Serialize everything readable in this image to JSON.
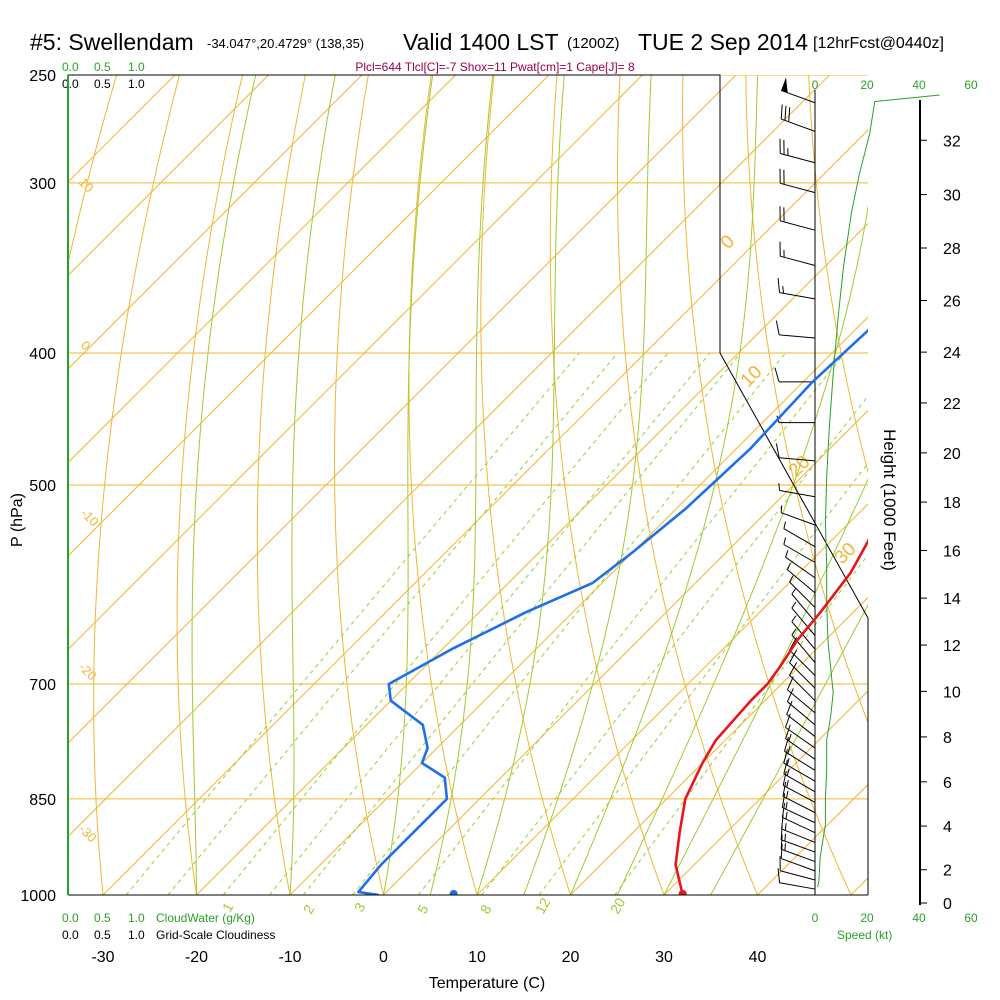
{
  "header": {
    "station": "#5: Swellendam",
    "coords": "-34.047°,20.4729° (138,35)",
    "valid": "Valid 1400 LST",
    "zulu": "(1200Z)",
    "date": "TUE 2 Sep 2014",
    "forecast": "[12hrFcst@0440z]",
    "indices": "Plcl=644 Tlcl[C]=-7 Shox=11 Pwat[cm]=1 Cape[J]= 8"
  },
  "legends": {
    "cloudwater_scale": [
      "0.0",
      "0.5",
      "1.0"
    ],
    "cloudwater_label": "CloudWater (g/Kg)",
    "cloudiness_scale": [
      "0.0",
      "0.5",
      "1.0"
    ],
    "cloudiness_label": "Grid-Scale Cloudiness",
    "speed_label": "Speed (kt)"
  },
  "colors": {
    "isobar": "#f2b632",
    "isotherm": "#f2b632",
    "dry_adiabat": "#f2b632",
    "moist_adiabat": "#9ccc33",
    "mixing_ratio": "#9ccc33",
    "temperature": "#e8141e",
    "dewpoint": "#1e6fe8",
    "speed": "#2aa02a"
  },
  "chart_data": {
    "type": "line",
    "title": "#5: Swellendam -34.047°,20.4729° (138,35) Valid 1400 LST (1200Z) TUE 2 Sep 2014 [12hrFcst@0440z]",
    "xlabel": "Temperature (C)",
    "ylabel": "P (hPa)",
    "right_ylabel": "Height (1000 Feet)",
    "x_ticks": [
      -30,
      -20,
      -10,
      0,
      10,
      20,
      30,
      40
    ],
    "xlim": [
      -34,
      46
    ],
    "y_ticks": [
      250,
      300,
      400,
      500,
      700,
      850,
      1000
    ],
    "ylim": [
      1000,
      250
    ],
    "y_scale": "log",
    "height_ticks": [
      0,
      2,
      4,
      6,
      8,
      10,
      12,
      14,
      16,
      18,
      20,
      22,
      24,
      26,
      28,
      30,
      32
    ],
    "speed_ticks": [
      0,
      20,
      40,
      60
    ],
    "dry_adiabat_labels": [
      "40",
      "30",
      "20",
      "10",
      "0",
      "-10",
      "-20",
      "-30"
    ],
    "dry_adiabat_temps": [
      40,
      30,
      20,
      10,
      0,
      -10,
      -20,
      -30
    ],
    "moist_adiabat_labels": [
      "0",
      "10",
      "20",
      "30"
    ],
    "moist_adiabat_thetaw": [
      0,
      10,
      20,
      30
    ],
    "mixing_ratio_labels": [
      "1",
      "2",
      "3",
      "5",
      "8",
      "12",
      "20"
    ],
    "mixing_ratio_values": [
      1,
      2,
      3,
      5,
      8,
      12,
      20
    ],
    "series": [
      {
        "name": "Temperature",
        "points": [
          [
            32,
            1000
          ],
          [
            28,
            950
          ],
          [
            25,
            900
          ],
          [
            22,
            850
          ],
          [
            20,
            800
          ],
          [
            19,
            770
          ],
          [
            18.5,
            720
          ],
          [
            18.5,
            700
          ],
          [
            18,
            680
          ],
          [
            17,
            650
          ],
          [
            16.5,
            620
          ],
          [
            15.5,
            580
          ],
          [
            14,
            550
          ],
          [
            12,
            520
          ],
          [
            10,
            500
          ],
          [
            7,
            450
          ],
          [
            4,
            400
          ],
          [
            1.5,
            350
          ],
          [
            -0.5,
            300
          ],
          [
            -1,
            270
          ],
          [
            -1,
            260
          ]
        ]
      },
      {
        "name": "Dewpoint",
        "points": [
          [
            -0.5,
            1000
          ],
          [
            -3,
            995
          ],
          [
            -3.5,
            950
          ],
          [
            -3.5,
            850
          ],
          [
            -6,
            820
          ],
          [
            -10,
            800
          ],
          [
            -11,
            780
          ],
          [
            -14,
            750
          ],
          [
            -20,
            720
          ],
          [
            -22,
            700
          ],
          [
            -19,
            660
          ],
          [
            -15,
            620
          ],
          [
            -11,
            590
          ],
          [
            -10,
            560
          ],
          [
            -9,
            520
          ],
          [
            -8.5,
            470
          ],
          [
            -9,
            420
          ],
          [
            -8.5,
            380
          ],
          [
            -7,
            350
          ],
          [
            -5,
            320
          ],
          [
            -4,
            300
          ],
          [
            -4,
            280
          ],
          [
            -5,
            260
          ]
        ]
      },
      {
        "name": "Surface dewpoint marker",
        "points": [
          [
            7.5,
            1000
          ]
        ]
      },
      {
        "name": "Wind speed",
        "points": [
          [
            1,
            1000
          ],
          [
            1.5,
            990
          ],
          [
            2,
            950
          ],
          [
            4,
            900
          ],
          [
            4,
            860
          ],
          [
            4.5,
            820
          ],
          [
            4.5,
            780
          ],
          [
            6,
            750
          ],
          [
            7,
            720
          ],
          [
            6,
            690
          ],
          [
            5,
            660
          ],
          [
            4.5,
            620
          ],
          [
            4.5,
            580
          ],
          [
            4,
            540
          ],
          [
            4.5,
            500
          ],
          [
            5.5,
            460
          ],
          [
            7,
            420
          ],
          [
            9,
            380
          ],
          [
            11,
            350
          ],
          [
            14,
            320
          ],
          [
            17,
            300
          ],
          [
            21,
            280
          ],
          [
            23,
            265
          ]
        ]
      }
    ],
    "wind_barbs": [
      {
        "p": 990,
        "dir": 280,
        "spd": 10
      },
      {
        "p": 975,
        "dir": 285,
        "spd": 12
      },
      {
        "p": 960,
        "dir": 290,
        "spd": 14
      },
      {
        "p": 945,
        "dir": 290,
        "spd": 15
      },
      {
        "p": 930,
        "dir": 290,
        "spd": 15
      },
      {
        "p": 915,
        "dir": 292,
        "spd": 16
      },
      {
        "p": 900,
        "dir": 295,
        "spd": 16
      },
      {
        "p": 885,
        "dir": 295,
        "spd": 16
      },
      {
        "p": 870,
        "dir": 297,
        "spd": 15
      },
      {
        "p": 855,
        "dir": 298,
        "spd": 15
      },
      {
        "p": 840,
        "dir": 300,
        "spd": 15
      },
      {
        "p": 825,
        "dir": 300,
        "spd": 15
      },
      {
        "p": 810,
        "dir": 302,
        "spd": 15
      },
      {
        "p": 795,
        "dir": 305,
        "spd": 15
      },
      {
        "p": 780,
        "dir": 305,
        "spd": 14
      },
      {
        "p": 765,
        "dir": 308,
        "spd": 13
      },
      {
        "p": 750,
        "dir": 310,
        "spd": 12
      },
      {
        "p": 735,
        "dir": 310,
        "spd": 12
      },
      {
        "p": 720,
        "dir": 315,
        "spd": 11
      },
      {
        "p": 705,
        "dir": 315,
        "spd": 10
      },
      {
        "p": 690,
        "dir": 315,
        "spd": 10
      },
      {
        "p": 675,
        "dir": 320,
        "spd": 9
      },
      {
        "p": 660,
        "dir": 320,
        "spd": 8
      },
      {
        "p": 645,
        "dir": 320,
        "spd": 7
      },
      {
        "p": 630,
        "dir": 320,
        "spd": 6
      },
      {
        "p": 615,
        "dir": 315,
        "spd": 5
      },
      {
        "p": 600,
        "dir": 310,
        "spd": 6
      },
      {
        "p": 585,
        "dir": 305,
        "spd": 6
      },
      {
        "p": 570,
        "dir": 300,
        "spd": 5
      },
      {
        "p": 555,
        "dir": 300,
        "spd": 5
      },
      {
        "p": 535,
        "dir": 290,
        "spd": 7
      },
      {
        "p": 510,
        "dir": 280,
        "spd": 8
      },
      {
        "p": 480,
        "dir": 275,
        "spd": 10
      },
      {
        "p": 450,
        "dir": 270,
        "spd": 7
      },
      {
        "p": 420,
        "dir": 270,
        "spd": 10
      },
      {
        "p": 390,
        "dir": 275,
        "spd": 12
      },
      {
        "p": 365,
        "dir": 280,
        "spd": 15
      },
      {
        "p": 345,
        "dir": 285,
        "spd": 17
      },
      {
        "p": 325,
        "dir": 285,
        "spd": 21
      },
      {
        "p": 305,
        "dir": 285,
        "spd": 24
      },
      {
        "p": 290,
        "dir": 285,
        "spd": 27
      },
      {
        "p": 275,
        "dir": 290,
        "spd": 30
      },
      {
        "p": 262,
        "dir": 290,
        "spd": 50
      }
    ]
  }
}
